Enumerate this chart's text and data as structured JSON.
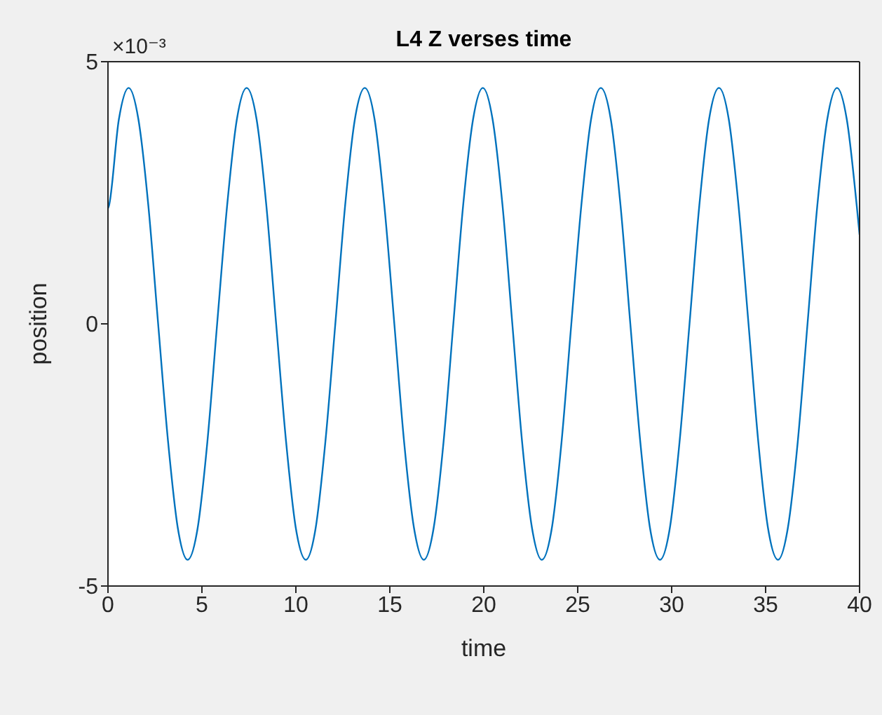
{
  "chart_data": {
    "type": "line",
    "title": "L4 Z verses time",
    "xlabel": "time",
    "ylabel": "position",
    "annotations": [
      "×10⁻³"
    ],
    "x": [
      0,
      0.05,
      0.58,
      1.1,
      1.62,
      2.15,
      2.67,
      3.2,
      3.72,
      4.24,
      4.77,
      5.29,
      5.81,
      6.34,
      6.86,
      7.38,
      7.91,
      8.43,
      8.95,
      9.48,
      10.0,
      10.53,
      11.05,
      11.57,
      12.1,
      12.62,
      13.14,
      13.67,
      14.19,
      14.71,
      15.24,
      15.76,
      16.29,
      16.81,
      17.33,
      17.86,
      18.38,
      18.9,
      19.43,
      19.95,
      20.47,
      21.0,
      21.52,
      22.04,
      22.57,
      23.09,
      23.62,
      24.14,
      24.66,
      25.19,
      25.71,
      26.23,
      26.76,
      27.28,
      27.8,
      28.33,
      28.85,
      29.38,
      29.9,
      30.42,
      30.95,
      31.47,
      31.99,
      32.52,
      33.04,
      33.56,
      34.09,
      34.61,
      35.13,
      35.66,
      36.18,
      36.71,
      37.23,
      37.75,
      38.28,
      38.8,
      39.32,
      39.85,
      40
    ],
    "series": [
      {
        "color": "#0072bd",
        "values": [
          2.2,
          2.25,
          3.9,
          4.5,
          3.9,
          2.25,
          0,
          -2.25,
          -3.9,
          -4.5,
          -3.9,
          -2.25,
          0,
          2.25,
          3.9,
          4.5,
          3.9,
          2.25,
          0,
          -2.25,
          -3.9,
          -4.5,
          -3.9,
          -2.25,
          0,
          2.25,
          3.9,
          4.5,
          3.9,
          2.25,
          0,
          -2.25,
          -3.9,
          -4.5,
          -3.9,
          -2.25,
          0,
          2.25,
          3.9,
          4.5,
          3.9,
          2.25,
          0,
          -2.25,
          -3.9,
          -4.5,
          -3.9,
          -2.25,
          0,
          2.25,
          3.9,
          4.5,
          3.9,
          2.25,
          0,
          -2.25,
          -3.9,
          -4.5,
          -3.9,
          -2.25,
          0,
          2.25,
          3.9,
          4.5,
          3.9,
          2.25,
          0,
          -2.25,
          -3.9,
          -4.5,
          -3.9,
          -2.25,
          0,
          2.25,
          3.9,
          4.5,
          3.9,
          2.25,
          1.7
        ]
      }
    ],
    "xlim": [
      0,
      40
    ],
    "xticks": [
      0,
      5,
      10,
      15,
      20,
      25,
      30,
      35,
      40
    ],
    "ylim": [
      -5,
      5
    ],
    "yticks": [
      -5,
      0,
      5
    ]
  }
}
